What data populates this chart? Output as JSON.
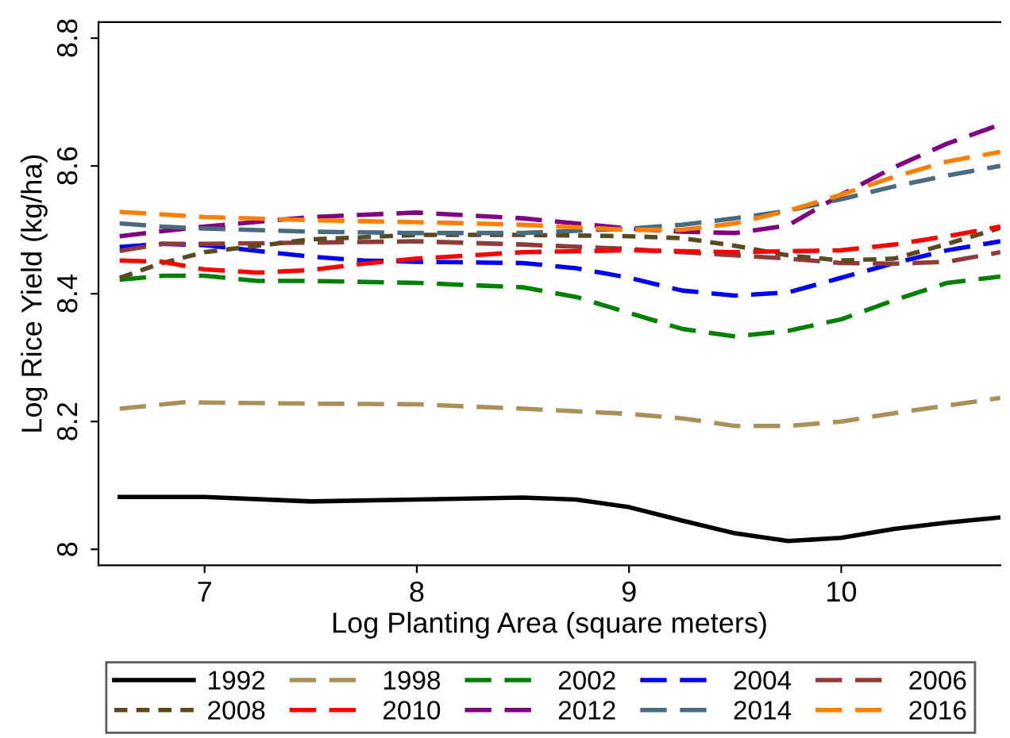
{
  "chart_data": {
    "type": "line",
    "xlabel": "Log Planting Area (square meters)",
    "ylabel": "Log Rice Yield (kg/ha)",
    "xlim": [
      6.5,
      10.75
    ],
    "ylim": [
      7.975,
      8.825
    ],
    "xticks": [
      7,
      8,
      9,
      10
    ],
    "yticks": [
      8,
      8.2,
      8.4,
      8.6,
      8.8
    ],
    "grid": false,
    "legend": "bottom",
    "series": [
      {
        "name": "1992",
        "color": "#000000",
        "line_style": "solid",
        "x": [
          6.6,
          7.0,
          7.5,
          8.0,
          8.5,
          8.75,
          9.0,
          9.25,
          9.5,
          9.75,
          10.0,
          10.25,
          10.5,
          10.75
        ],
        "values": [
          8.082,
          8.082,
          8.075,
          8.078,
          8.081,
          8.078,
          8.066,
          8.045,
          8.025,
          8.013,
          8.018,
          8.032,
          8.042,
          8.05
        ]
      },
      {
        "name": "1998",
        "color": "#a89058",
        "line_style": "dashed",
        "x": [
          6.6,
          6.9,
          7.5,
          8.0,
          8.5,
          9.0,
          9.25,
          9.5,
          9.75,
          10.0,
          10.25,
          10.5,
          10.75
        ],
        "values": [
          8.22,
          8.23,
          8.228,
          8.227,
          8.22,
          8.212,
          8.205,
          8.193,
          8.193,
          8.2,
          8.213,
          8.225,
          8.237
        ]
      },
      {
        "name": "2002",
        "color": "#008000",
        "line_style": "dashed",
        "x": [
          6.6,
          6.8,
          7.0,
          7.25,
          7.5,
          8.0,
          8.5,
          8.75,
          9.0,
          9.25,
          9.5,
          9.75,
          10.0,
          10.25,
          10.5,
          10.75
        ],
        "values": [
          8.422,
          8.428,
          8.428,
          8.42,
          8.42,
          8.417,
          8.41,
          8.395,
          8.37,
          8.345,
          8.333,
          8.342,
          8.36,
          8.39,
          8.417,
          8.427
        ]
      },
      {
        "name": "2004",
        "color": "#0000ff",
        "line_style": "dashed",
        "x": [
          6.6,
          6.8,
          7.0,
          7.25,
          7.5,
          7.75,
          8.0,
          8.5,
          8.75,
          9.0,
          9.25,
          9.5,
          9.75,
          10.0,
          10.25,
          10.5,
          10.75
        ],
        "values": [
          8.473,
          8.478,
          8.476,
          8.467,
          8.458,
          8.452,
          8.45,
          8.448,
          8.44,
          8.425,
          8.405,
          8.397,
          8.402,
          8.425,
          8.448,
          8.468,
          8.482
        ]
      },
      {
        "name": "2006",
        "color": "#903a3a",
        "line_style": "dashed",
        "x": [
          6.6,
          6.8,
          7.0,
          7.5,
          8.0,
          8.5,
          9.0,
          9.5,
          9.75,
          10.0,
          10.25,
          10.5,
          10.75
        ],
        "values": [
          8.467,
          8.478,
          8.478,
          8.48,
          8.482,
          8.477,
          8.47,
          8.46,
          8.455,
          8.448,
          8.447,
          8.45,
          8.465
        ]
      },
      {
        "name": "2008",
        "color": "#5a4a20",
        "line_style": "dotted",
        "x": [
          6.6,
          6.8,
          7.0,
          7.25,
          7.5,
          8.0,
          8.5,
          9.0,
          9.25,
          9.5,
          9.75,
          10.0,
          10.25,
          10.5,
          10.75
        ],
        "values": [
          8.425,
          8.448,
          8.465,
          8.475,
          8.485,
          8.492,
          8.492,
          8.49,
          8.487,
          8.475,
          8.46,
          8.452,
          8.455,
          8.478,
          8.503
        ]
      },
      {
        "name": "2010",
        "color": "#ff0000",
        "line_style": "dashed",
        "x": [
          6.6,
          6.8,
          7.0,
          7.25,
          7.5,
          7.75,
          8.0,
          8.5,
          9.0,
          9.5,
          10.0,
          10.25,
          10.5,
          10.75
        ],
        "values": [
          8.452,
          8.45,
          8.438,
          8.433,
          8.437,
          8.447,
          8.455,
          8.465,
          8.468,
          8.465,
          8.468,
          8.477,
          8.49,
          8.505
        ]
      },
      {
        "name": "2012",
        "color": "#800080",
        "line_style": "dashed",
        "x": [
          6.6,
          6.8,
          7.0,
          7.5,
          8.0,
          8.5,
          9.0,
          9.25,
          9.5,
          9.75,
          10.0,
          10.25,
          10.5,
          10.75
        ],
        "values": [
          8.49,
          8.498,
          8.505,
          8.52,
          8.527,
          8.518,
          8.502,
          8.497,
          8.495,
          8.507,
          8.555,
          8.598,
          8.635,
          8.665
        ]
      },
      {
        "name": "2014",
        "color": "#4a6a80",
        "line_style": "dashed",
        "x": [
          6.6,
          6.8,
          7.0,
          7.5,
          8.0,
          8.5,
          9.0,
          9.25,
          9.5,
          9.75,
          10.0,
          10.25,
          10.5,
          10.75
        ],
        "values": [
          8.51,
          8.505,
          8.502,
          8.497,
          8.495,
          8.495,
          8.502,
          8.508,
          8.518,
          8.53,
          8.548,
          8.568,
          8.585,
          8.6
        ]
      },
      {
        "name": "2016",
        "color": "#ff8000",
        "line_style": "dashed",
        "x": [
          6.6,
          7.0,
          7.5,
          8.0,
          8.5,
          9.0,
          9.25,
          9.5,
          9.75,
          10.0,
          10.25,
          10.5,
          10.75
        ],
        "values": [
          8.528,
          8.52,
          8.515,
          8.512,
          8.508,
          8.5,
          8.5,
          8.51,
          8.53,
          8.555,
          8.583,
          8.607,
          8.622
        ]
      }
    ]
  }
}
